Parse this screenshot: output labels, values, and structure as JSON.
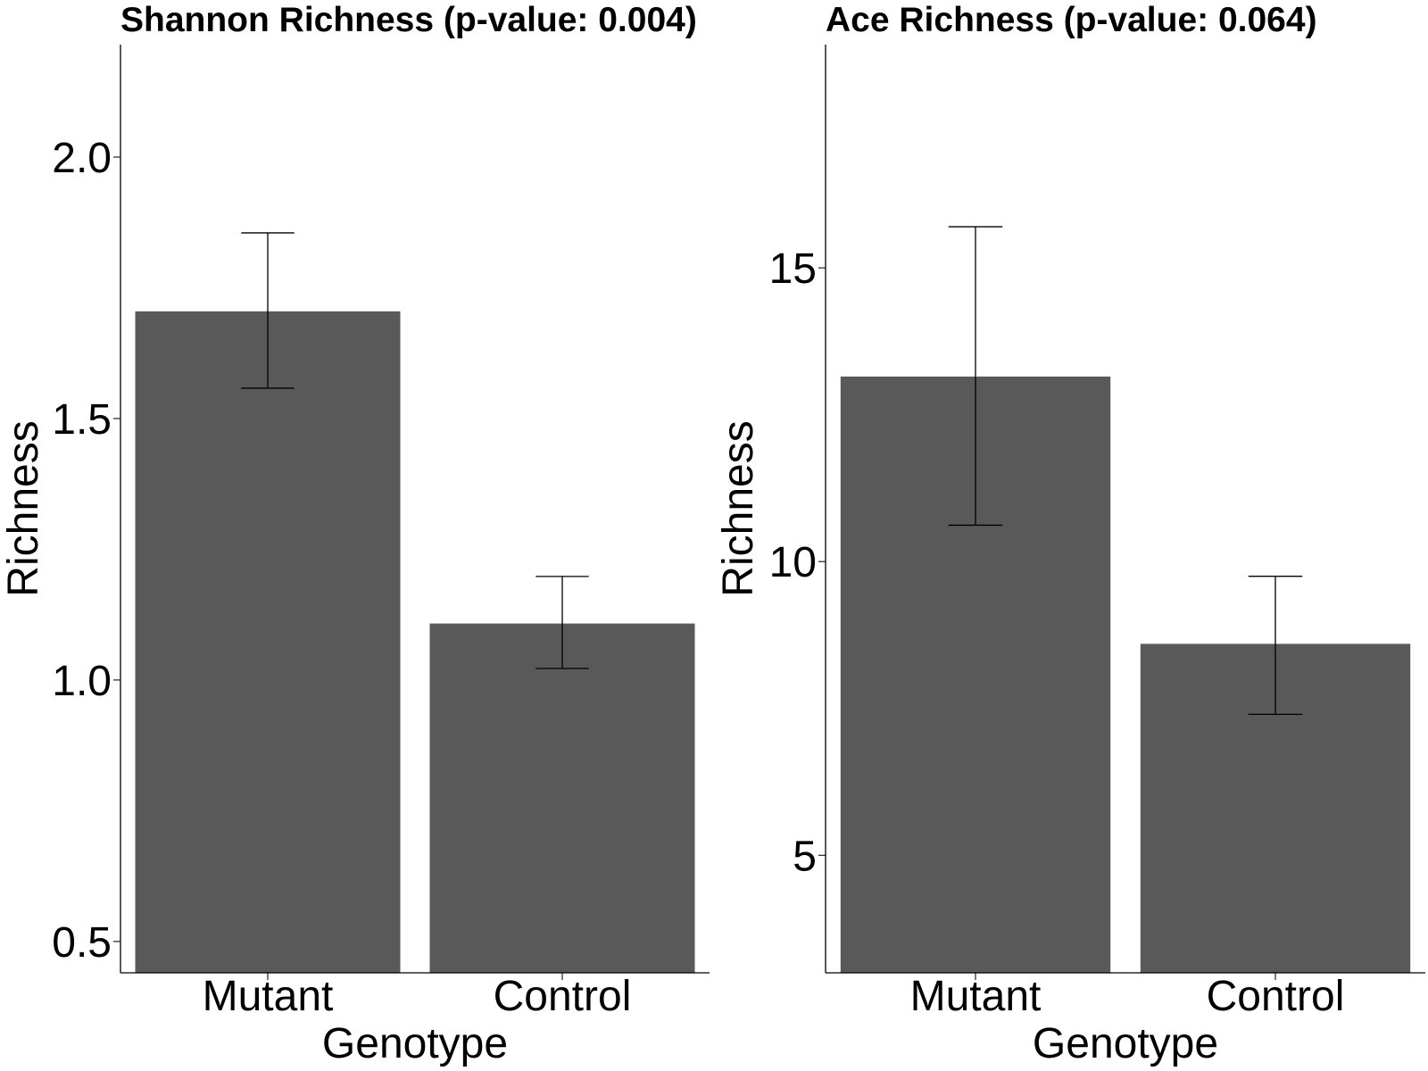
{
  "bar_color": "#595959",
  "chart_data": [
    {
      "type": "bar",
      "title": "Shannon Richness (p-value: 0.004)",
      "xlabel": "Genotype",
      "ylabel": "Richness",
      "categories": [
        "Mutant",
        "Control"
      ],
      "values": [
        1.705,
        1.108
      ],
      "error_low": [
        1.558,
        1.022
      ],
      "error_high": [
        1.855,
        1.198
      ],
      "ylim": [
        0.44,
        2.215
      ],
      "yticks": [
        0.5,
        1.0,
        1.5,
        2.0
      ],
      "ytick_labels": [
        "0.5",
        "1.0",
        "1.5",
        "2.0"
      ],
      "grid": false
    },
    {
      "type": "bar",
      "title": "Ace Richness (p-value: 0.064)",
      "xlabel": "Genotype",
      "ylabel": "Richness",
      "categories": [
        "Mutant",
        "Control"
      ],
      "values": [
        13.15,
        8.6
      ],
      "error_low": [
        10.62,
        7.4
      ],
      "error_high": [
        15.7,
        9.75
      ],
      "ylim": [
        3.0,
        18.8
      ],
      "yticks": [
        5,
        10,
        15
      ],
      "ytick_labels": [
        "5",
        "10",
        "15"
      ],
      "grid": false
    }
  ]
}
